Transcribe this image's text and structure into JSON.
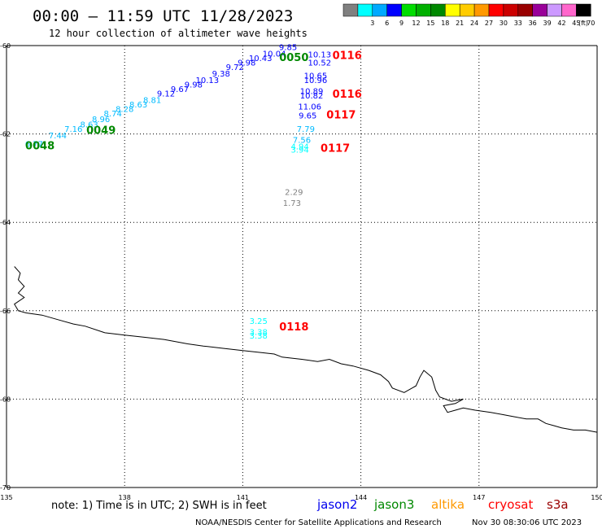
{
  "header": {
    "title": "00:00 — 11:59 UTC 11/28/2023",
    "subtitle": "12 hour collection of altimeter wave heights"
  },
  "legend": {
    "unit": "(ft)",
    "swatches": [
      {
        "color": "#808080",
        "label": ""
      },
      {
        "color": "#00ffff",
        "label": "3"
      },
      {
        "color": "#00aaff",
        "label": "6"
      },
      {
        "color": "#0000ff",
        "label": "9"
      },
      {
        "color": "#00dd00",
        "label": "12"
      },
      {
        "color": "#00b000",
        "label": "15"
      },
      {
        "color": "#008800",
        "label": "18"
      },
      {
        "color": "#ffff00",
        "label": "21"
      },
      {
        "color": "#ffcc00",
        "label": "24"
      },
      {
        "color": "#ff9900",
        "label": "27"
      },
      {
        "color": "#ff0000",
        "label": "30"
      },
      {
        "color": "#cc0000",
        "label": "33"
      },
      {
        "color": "#990000",
        "label": "36"
      },
      {
        "color": "#990099",
        "label": "39"
      },
      {
        "color": "#cc99ff",
        "label": "42"
      },
      {
        "color": "#ff66cc",
        "label": "45"
      },
      {
        "color": "#000000",
        "label": "70"
      }
    ]
  },
  "map": {
    "lon_range": [
      135,
      150
    ],
    "lat_range": [
      -70,
      -60
    ],
    "lon_ticks": [
      "135",
      "138",
      "141",
      "144",
      "147",
      "150"
    ],
    "lat_ticks": [
      "-60",
      "-62",
      "-64",
      "-66",
      "-68",
      "-70"
    ],
    "coastline": [
      [
        135.2,
        -65.0
      ],
      [
        135.35,
        -65.15
      ],
      [
        135.3,
        -65.3
      ],
      [
        135.45,
        -65.45
      ],
      [
        135.3,
        -65.6
      ],
      [
        135.45,
        -65.7
      ],
      [
        135.2,
        -65.85
      ],
      [
        135.3,
        -66.0
      ],
      [
        135.5,
        -66.05
      ],
      [
        135.9,
        -66.1
      ],
      [
        136.3,
        -66.2
      ],
      [
        136.7,
        -66.3
      ],
      [
        137.0,
        -66.35
      ],
      [
        137.5,
        -66.5
      ],
      [
        138.0,
        -66.55
      ],
      [
        138.5,
        -66.6
      ],
      [
        139.0,
        -66.65
      ],
      [
        139.6,
        -66.75
      ],
      [
        140.0,
        -66.8
      ],
      [
        140.5,
        -66.85
      ],
      [
        141.0,
        -66.9
      ],
      [
        141.5,
        -66.95
      ],
      [
        141.8,
        -66.98
      ],
      [
        142.0,
        -67.05
      ],
      [
        142.5,
        -67.1
      ],
      [
        142.9,
        -67.15
      ],
      [
        143.2,
        -67.1
      ],
      [
        143.5,
        -67.2
      ],
      [
        143.8,
        -67.25
      ],
      [
        144.2,
        -67.35
      ],
      [
        144.5,
        -67.45
      ],
      [
        144.7,
        -67.6
      ],
      [
        144.8,
        -67.75
      ],
      [
        145.1,
        -67.85
      ],
      [
        145.4,
        -67.7
      ],
      [
        145.5,
        -67.5
      ],
      [
        145.6,
        -67.35
      ],
      [
        145.8,
        -67.5
      ],
      [
        145.9,
        -67.8
      ],
      [
        146.0,
        -67.95
      ],
      [
        146.3,
        -68.05
      ],
      [
        146.6,
        -68.0
      ],
      [
        146.4,
        -68.1
      ],
      [
        146.1,
        -68.15
      ],
      [
        146.2,
        -68.3
      ],
      [
        146.4,
        -68.25
      ],
      [
        146.6,
        -68.2
      ],
      [
        146.9,
        -68.25
      ],
      [
        147.3,
        -68.3
      ],
      [
        147.6,
        -68.35
      ],
      [
        147.9,
        -68.4
      ],
      [
        148.2,
        -68.45
      ],
      [
        148.5,
        -68.45
      ],
      [
        148.7,
        -68.55
      ],
      [
        148.9,
        -68.6
      ],
      [
        149.1,
        -68.65
      ],
      [
        149.4,
        -68.7
      ],
      [
        149.7,
        -68.7
      ],
      [
        150.0,
        -68.75
      ]
    ],
    "observations": [
      {
        "lon": 135.7,
        "lat": -62.29,
        "value": "6.77",
        "color": "#00bbff"
      },
      {
        "lon": 136.3,
        "lat": -62.1,
        "value": "7.44",
        "color": "#00bbff"
      },
      {
        "lon": 136.7,
        "lat": -61.95,
        "value": "7.16",
        "color": "#00bbff"
      },
      {
        "lon": 137.1,
        "lat": -61.85,
        "value": "8.63",
        "color": "#00bbff"
      },
      {
        "lon": 137.4,
        "lat": -61.73,
        "value": "8.96",
        "color": "#00bbff"
      },
      {
        "lon": 137.7,
        "lat": -61.6,
        "value": "8.74",
        "color": "#00bbff"
      },
      {
        "lon": 138.0,
        "lat": -61.5,
        "value": "8.28",
        "color": "#00bbff"
      },
      {
        "lon": 138.35,
        "lat": -61.4,
        "value": "8.63",
        "color": "#00bbff"
      },
      {
        "lon": 138.7,
        "lat": -61.3,
        "value": "8.81",
        "color": "#00bbff"
      },
      {
        "lon": 139.05,
        "lat": -61.15,
        "value": "9.12",
        "color": "#0000ff"
      },
      {
        "lon": 139.4,
        "lat": -61.05,
        "value": "9.67",
        "color": "#0000ff"
      },
      {
        "lon": 139.75,
        "lat": -60.95,
        "value": "9.98",
        "color": "#0000ff"
      },
      {
        "lon": 140.1,
        "lat": -60.85,
        "value": "10.13",
        "color": "#0000ff"
      },
      {
        "lon": 140.45,
        "lat": -60.7,
        "value": "9.38",
        "color": "#0000ff"
      },
      {
        "lon": 140.8,
        "lat": -60.55,
        "value": "9.72",
        "color": "#0000ff"
      },
      {
        "lon": 141.1,
        "lat": -60.45,
        "value": "9.98",
        "color": "#0000ff"
      },
      {
        "lon": 141.45,
        "lat": -60.35,
        "value": "10.43",
        "color": "#0000ff"
      },
      {
        "lon": 141.8,
        "lat": -60.25,
        "value": "10.04",
        "color": "#0000ff"
      },
      {
        "lon": 142.15,
        "lat": -60.1,
        "value": "9.85",
        "color": "#0000ff"
      },
      {
        "lon": 142.95,
        "lat": -60.27,
        "value": "10.13",
        "color": "#0000ff"
      },
      {
        "lon": 142.95,
        "lat": -60.45,
        "value": "10.52",
        "color": "#0000ff"
      },
      {
        "lon": 142.85,
        "lat": -60.75,
        "value": "10.65",
        "color": "#0000ff"
      },
      {
        "lon": 142.85,
        "lat": -60.85,
        "value": "10.96",
        "color": "#0000ff"
      },
      {
        "lon": 142.75,
        "lat": -61.1,
        "value": "10.89",
        "color": "#0000ff"
      },
      {
        "lon": 142.75,
        "lat": -61.2,
        "value": "10.82",
        "color": "#0000ff"
      },
      {
        "lon": 142.7,
        "lat": -61.45,
        "value": "11.06",
        "color": "#0000ff"
      },
      {
        "lon": 142.65,
        "lat": -61.65,
        "value": "9.65",
        "color": "#0000ff"
      },
      {
        "lon": 142.6,
        "lat": -61.95,
        "value": "7.79",
        "color": "#00bbff"
      },
      {
        "lon": 142.5,
        "lat": -62.2,
        "value": "7.56",
        "color": "#00bbff"
      },
      {
        "lon": 142.45,
        "lat": -62.35,
        "value": "4.94",
        "color": "#00ffff"
      },
      {
        "lon": 142.45,
        "lat": -62.42,
        "value": "3.94",
        "color": "#00ffff"
      },
      {
        "lon": 142.3,
        "lat": -63.38,
        "value": "2.29",
        "color": "#808080"
      },
      {
        "lon": 142.25,
        "lat": -63.63,
        "value": "1.73",
        "color": "#808080"
      },
      {
        "lon": 141.4,
        "lat": -66.3,
        "value": "3.25",
        "color": "#00ffff"
      },
      {
        "lon": 141.4,
        "lat": -66.55,
        "value": "3.38",
        "color": "#00ffff"
      },
      {
        "lon": 141.4,
        "lat": -66.63,
        "value": "3.38",
        "color": "#00ffff"
      }
    ],
    "time_labels": [
      {
        "lon": 135.85,
        "lat": -62.35,
        "text": "0048",
        "color": "#008800"
      },
      {
        "lon": 137.4,
        "lat": -62.0,
        "text": "0049",
        "color": "#008800"
      },
      {
        "lon": 142.3,
        "lat": -60.35,
        "text": "0050",
        "color": "#008800"
      },
      {
        "lon": 143.65,
        "lat": -60.3,
        "text": "0116",
        "color": "#ff0000"
      },
      {
        "lon": 143.65,
        "lat": -61.18,
        "text": "0116",
        "color": "#ff0000"
      },
      {
        "lon": 143.5,
        "lat": -61.65,
        "text": "0117",
        "color": "#ff0000"
      },
      {
        "lon": 143.35,
        "lat": -62.4,
        "text": "0117",
        "color": "#ff0000"
      },
      {
        "lon": 142.3,
        "lat": -66.45,
        "text": "0118",
        "color": "#ff0000"
      }
    ]
  },
  "footer": {
    "note": "note: 1) Time is in UTC; 2) SWH is in feet",
    "satellites": [
      {
        "name": "jason2",
        "color": "#0000ee"
      },
      {
        "name": "jason3",
        "color": "#008800"
      },
      {
        "name": "altika",
        "color": "#ff9900"
      },
      {
        "name": "cryosat",
        "color": "#ff0000"
      },
      {
        "name": "s3a",
        "color": "#990000"
      }
    ],
    "credit": "NOAA/NESDIS Center for Satellite Applications and Research",
    "timestamp": "Nov 30 08:30:06 UTC 2023"
  }
}
